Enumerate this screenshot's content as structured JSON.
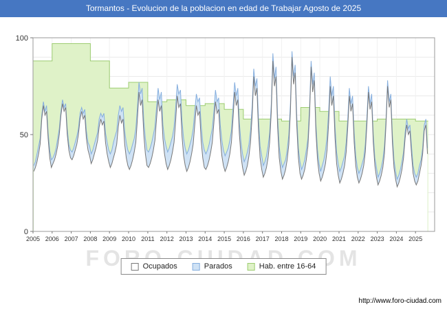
{
  "title": "Tormantos - Evolucion de la poblacion en edad de Trabajar Agosto de 2025",
  "watermark": "FORO-CIUDAD.COM",
  "footer": {
    "url": "http://www.foro-ciudad.com"
  },
  "colors": {
    "title_bar": "#4677c2",
    "plot_border": "#999999",
    "grid": "#e9e9e9",
    "grid_vertical": "#f1f1f1",
    "watermark": "#e4e4e4"
  },
  "legend": {
    "items": [
      {
        "label": "Ocupados",
        "fill": "#ffffff",
        "stroke": "#777777"
      },
      {
        "label": "Parados",
        "fill": "#cfe2f5",
        "stroke": "#85aede"
      },
      {
        "label": "Hab. entre 16-64",
        "fill": "#dff2c8",
        "stroke": "#9ccc70"
      }
    ]
  },
  "chart_data": {
    "type": "area",
    "title": "Tormantos - Evolucion de la poblacion en edad de Trabajar Agosto de 2025",
    "xlabel": "",
    "ylabel": "",
    "ylim": [
      0,
      100
    ],
    "yticks": [
      0,
      50,
      100
    ],
    "xticks": [
      "2005",
      "2006",
      "2007",
      "2008",
      "2009",
      "2010",
      "2011",
      "2012",
      "2013",
      "2014",
      "2015",
      "2016",
      "2017",
      "2018",
      "2019",
      "2020",
      "2021",
      "2022",
      "2023",
      "2024",
      "2025"
    ],
    "start_year": 2005,
    "axis_total_months": 252,
    "x_start": "2005-01",
    "x_end": "2025-08",
    "grid": true,
    "legend_position": "bottom",
    "series": [
      {
        "name": "Hab. entre 16-64",
        "style": "annual-step-area",
        "fill": "#dff2c8",
        "stroke": "#9ccc70",
        "annual_values": {
          "2005": 88,
          "2006": 97,
          "2007": 97,
          "2008": 88,
          "2009": 74,
          "2010": 77,
          "2011": 67,
          "2012": 68,
          "2013": 65,
          "2014": 66,
          "2015": 63,
          "2016": 58,
          "2017": 58,
          "2018": 57,
          "2019": 64,
          "2020": 62,
          "2021": 57,
          "2022": 57,
          "2023": 58,
          "2024": 58,
          "2025": 57
        }
      },
      {
        "name": "Parados",
        "style": "monthly-area-stacked-on-ocupados",
        "fill": "#cfe2f5",
        "stroke": "#85aede",
        "monthly_values_by_year": {
          "2005": [
            3,
            3,
            4,
            4,
            3,
            2,
            2,
            2,
            3,
            3,
            4,
            4
          ],
          "2006": [
            3,
            3,
            3,
            4,
            3,
            2,
            2,
            2,
            2,
            3,
            3,
            4
          ],
          "2007": [
            4,
            4,
            4,
            4,
            3,
            3,
            2,
            3,
            3,
            4,
            4,
            5
          ],
          "2008": [
            5,
            5,
            5,
            5,
            4,
            4,
            3,
            4,
            4,
            5,
            6,
            6
          ],
          "2009": [
            7,
            7,
            8,
            8,
            7,
            6,
            5,
            6,
            6,
            7,
            8,
            8
          ],
          "2010": [
            8,
            8,
            8,
            7,
            7,
            6,
            5,
            6,
            6,
            7,
            8,
            8
          ],
          "2011": [
            8,
            8,
            8,
            8,
            7,
            6,
            6,
            6,
            7,
            7,
            8,
            9
          ],
          "2012": [
            9,
            9,
            9,
            8,
            8,
            7,
            6,
            7,
            7,
            8,
            9,
            9
          ],
          "2013": [
            9,
            9,
            9,
            8,
            8,
            7,
            6,
            7,
            7,
            8,
            8,
            9
          ],
          "2014": [
            8,
            8,
            8,
            8,
            7,
            6,
            6,
            6,
            6,
            7,
            8,
            8
          ],
          "2015": [
            8,
            8,
            7,
            7,
            6,
            6,
            5,
            5,
            6,
            6,
            7,
            7
          ],
          "2016": [
            7,
            7,
            7,
            6,
            6,
            5,
            4,
            5,
            5,
            6,
            6,
            7
          ],
          "2017": [
            6,
            6,
            6,
            6,
            5,
            4,
            4,
            4,
            5,
            5,
            6,
            6
          ],
          "2018": [
            6,
            6,
            5,
            5,
            5,
            4,
            3,
            4,
            4,
            5,
            5,
            6
          ],
          "2019": [
            5,
            5,
            5,
            5,
            4,
            4,
            3,
            4,
            4,
            4,
            5,
            5
          ],
          "2020": [
            5,
            6,
            6,
            7,
            7,
            6,
            5,
            5,
            5,
            6,
            6,
            6
          ],
          "2021": [
            6,
            6,
            6,
            5,
            5,
            4,
            4,
            4,
            4,
            5,
            5,
            5
          ],
          "2022": [
            5,
            5,
            5,
            4,
            4,
            4,
            3,
            3,
            4,
            4,
            4,
            5
          ],
          "2023": [
            4,
            4,
            4,
            4,
            4,
            3,
            3,
            3,
            3,
            4,
            4,
            4
          ],
          "2024": [
            4,
            4,
            4,
            4,
            3,
            3,
            3,
            3,
            3,
            4,
            4,
            4
          ],
          "2025": [
            4,
            4,
            4,
            3,
            3,
            3,
            3,
            3
          ]
        }
      },
      {
        "name": "Ocupados",
        "style": "monthly-area",
        "fill": "#ffffff",
        "stroke": "#777777",
        "monthly_values_by_year": {
          "2005": [
            31,
            33,
            36,
            40,
            45,
            58,
            65,
            60,
            62,
            48,
            38,
            33
          ],
          "2006": [
            35,
            37,
            40,
            44,
            50,
            60,
            66,
            62,
            64,
            50,
            42,
            38
          ],
          "2007": [
            37,
            39,
            42,
            45,
            50,
            58,
            62,
            58,
            60,
            48,
            42,
            39
          ],
          "2008": [
            35,
            37,
            40,
            43,
            47,
            54,
            58,
            55,
            57,
            46,
            40,
            36
          ],
          "2009": [
            33,
            35,
            38,
            41,
            45,
            54,
            60,
            56,
            58,
            45,
            38,
            34
          ],
          "2010": [
            32,
            34,
            37,
            41,
            46,
            58,
            72,
            65,
            68,
            50,
            40,
            34
          ],
          "2011": [
            33,
            35,
            38,
            42,
            47,
            58,
            68,
            62,
            65,
            48,
            40,
            35
          ],
          "2012": [
            32,
            34,
            37,
            41,
            46,
            57,
            70,
            64,
            66,
            49,
            39,
            34
          ],
          "2013": [
            31,
            33,
            36,
            40,
            45,
            55,
            65,
            60,
            62,
            47,
            38,
            33
          ],
          "2014": [
            32,
            34,
            37,
            41,
            46,
            56,
            67,
            61,
            63,
            48,
            39,
            34
          ],
          "2015": [
            31,
            33,
            36,
            40,
            46,
            58,
            72,
            65,
            68,
            50,
            39,
            33
          ],
          "2016": [
            29,
            31,
            34,
            39,
            46,
            60,
            80,
            70,
            74,
            52,
            38,
            32
          ],
          "2017": [
            28,
            30,
            33,
            38,
            46,
            62,
            88,
            75,
            80,
            54,
            38,
            31
          ],
          "2018": [
            27,
            29,
            32,
            37,
            45,
            62,
            90,
            76,
            82,
            55,
            38,
            30
          ],
          "2019": [
            27,
            29,
            32,
            37,
            44,
            60,
            85,
            72,
            78,
            52,
            37,
            30
          ],
          "2020": [
            26,
            28,
            31,
            35,
            42,
            56,
            75,
            65,
            70,
            48,
            35,
            29
          ],
          "2021": [
            25,
            27,
            30,
            34,
            41,
            54,
            70,
            62,
            66,
            46,
            34,
            28
          ],
          "2022": [
            25,
            27,
            30,
            34,
            41,
            55,
            72,
            63,
            67,
            46,
            34,
            28
          ],
          "2023": [
            24,
            26,
            29,
            33,
            40,
            55,
            75,
            64,
            68,
            46,
            33,
            27
          ],
          "2024": [
            23,
            25,
            28,
            32,
            38,
            48,
            55,
            50,
            52,
            40,
            30,
            26
          ],
          "2025": [
            24,
            26,
            30,
            34,
            40,
            52,
            55,
            40
          ]
        }
      }
    ]
  }
}
